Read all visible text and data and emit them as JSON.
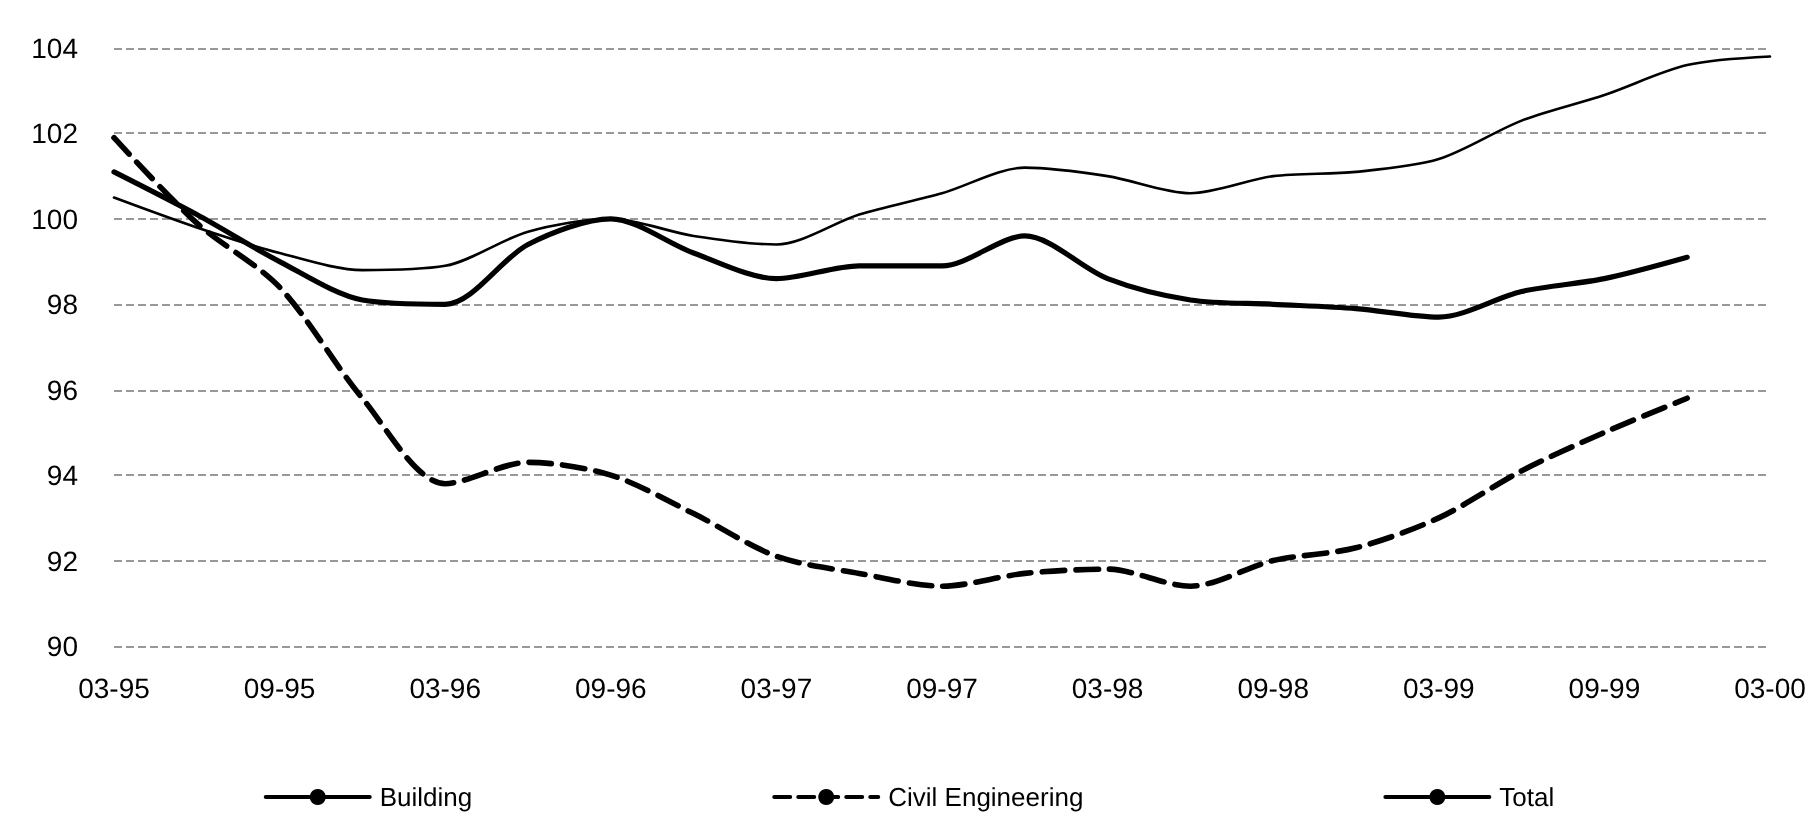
{
  "chart_data": {
    "type": "line",
    "categories": [
      "03-95",
      null,
      "09-95",
      null,
      "03-96",
      null,
      "09-96",
      null,
      "03-97",
      null,
      "09-97",
      null,
      "03-98",
      null,
      "09-98",
      null,
      "03-99",
      null,
      "09-99",
      null,
      "03-00"
    ],
    "series": [
      {
        "name": "Building",
        "color": "#000000",
        "line_style": "solid",
        "values": [
          101.1,
          100.1,
          99.0,
          98.1,
          98.0,
          99.4,
          100.0,
          99.2,
          98.6,
          98.9,
          98.9,
          99.6,
          98.6,
          98.1,
          98.0,
          97.9,
          97.7,
          98.3,
          98.6,
          99.1,
          null
        ]
      },
      {
        "name": "Civil Engineering",
        "color": "#000000",
        "line_style": "dashed",
        "values": [
          101.9,
          99.9,
          98.4,
          95.8,
          93.8,
          94.3,
          94.0,
          93.1,
          92.1,
          91.7,
          91.4,
          91.7,
          91.8,
          91.4,
          92.0,
          92.3,
          93.0,
          94.1,
          95.0,
          95.8,
          null
        ]
      },
      {
        "name": "Total",
        "color": "#000000",
        "line_style": "solid",
        "values": [
          100.5,
          99.8,
          99.2,
          98.8,
          98.9,
          99.7,
          100.0,
          99.6,
          99.4,
          100.1,
          100.6,
          101.2,
          101.0,
          100.6,
          101.0,
          101.1,
          101.4,
          102.3,
          102.9,
          103.6,
          103.8
        ]
      }
    ],
    "ylim": [
      90,
      104
    ],
    "yticks": [
      90,
      92,
      94,
      96,
      98,
      100,
      102,
      104
    ],
    "grid": "y",
    "legend": "bottom",
    "marker": "none"
  }
}
